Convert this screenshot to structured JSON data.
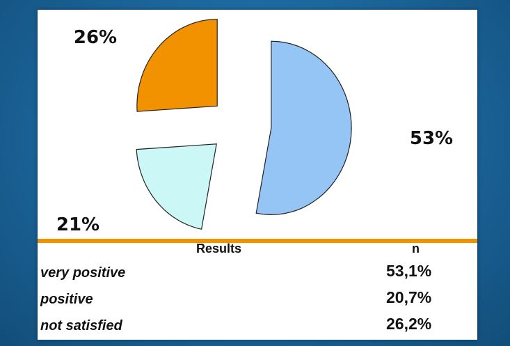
{
  "chart_data": {
    "type": "pie",
    "exploded": true,
    "slices": [
      {
        "value": 53,
        "label": "53%",
        "color": "#94c5f5"
      },
      {
        "value": 21,
        "label": "21%",
        "color": "#ccf7f7"
      },
      {
        "value": 26,
        "label": "26%",
        "color": "#f39200"
      }
    ]
  },
  "table": {
    "header_results": "Results",
    "header_n": "n",
    "rows": [
      {
        "label": "very positive",
        "value": "53,1%"
      },
      {
        "label": "positive",
        "value": "20,7%"
      },
      {
        "label": "not satisfied",
        "value": "26,2%"
      }
    ]
  },
  "colors": {
    "accent_line": "#f39200",
    "background": "#1d6aa0",
    "panel": "#ffffff"
  }
}
